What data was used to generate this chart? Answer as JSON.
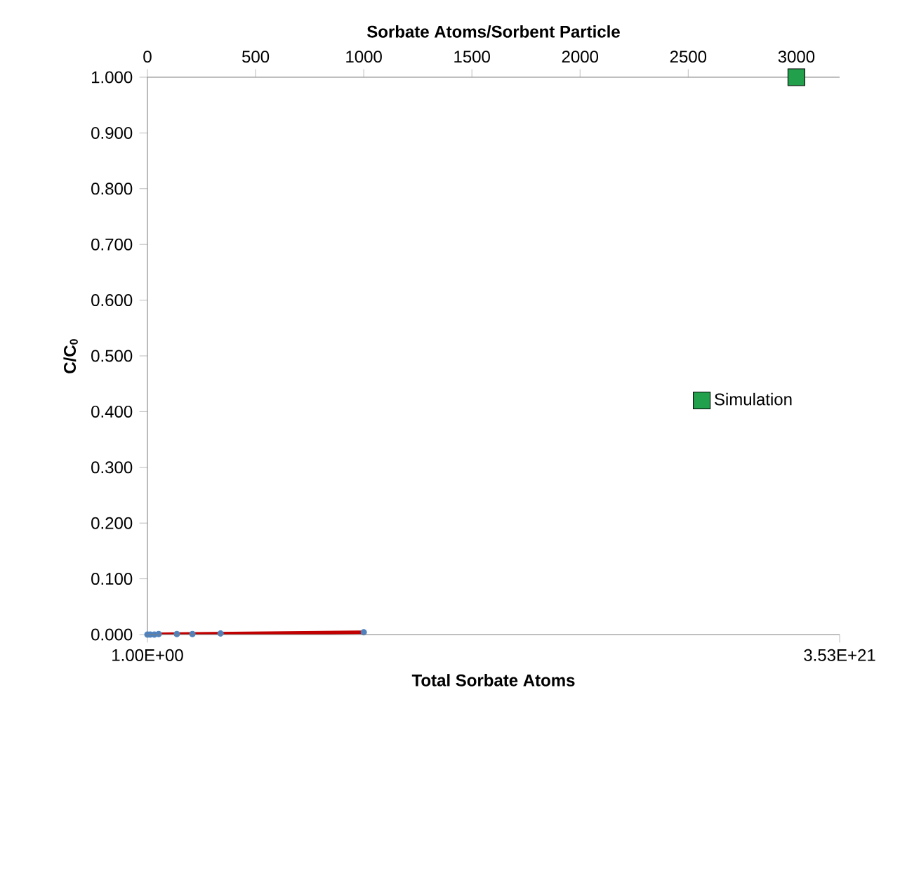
{
  "chart_data": {
    "type": "scatter",
    "xlabel": "Total Sorbate Atoms",
    "x2label": "Sorbate Atoms/Sorbent Particle",
    "ylabel": "C/C$_{0}$",
    "xlim": [
      1,
      3.53e+21
    ],
    "xticks": [
      {
        "value": 1,
        "label": "1.00E+00"
      },
      {
        "value": 3.53e+21,
        "label": "3.53E+21"
      }
    ],
    "x2lim": [
      0,
      3200
    ],
    "x2ticks": [
      0,
      500,
      1000,
      1500,
      2000,
      2500,
      3000
    ],
    "ylim": [
      0,
      1
    ],
    "yticks": [
      {
        "value": 0,
        "label": "0.000"
      },
      {
        "value": 0.1,
        "label": "0.100"
      },
      {
        "value": 0.2,
        "label": "0.200"
      },
      {
        "value": 0.3,
        "label": "0.300"
      },
      {
        "value": 0.4,
        "label": "0.400"
      },
      {
        "value": 0.5,
        "label": "0.500"
      },
      {
        "value": 0.6,
        "label": "0.600"
      },
      {
        "value": 0.7,
        "label": "0.700"
      },
      {
        "value": 0.8,
        "label": "0.800"
      },
      {
        "value": 0.9,
        "label": "0.900"
      },
      {
        "value": 1,
        "label": "1.000"
      }
    ],
    "grid": false,
    "legend": "right",
    "series": [
      {
        "type": "scatter",
        "axis": "x2",
        "marker": "circle",
        "color": "#4f81bd",
        "x": [
          0,
          13,
          32,
          52,
          136,
          208,
          338,
          1000
        ],
        "values": [
          0,
          0,
          0,
          0.001,
          0.001,
          0.001,
          0.002,
          0.004
        ]
      },
      {
        "type": "line",
        "axis": "x2",
        "marker": "none",
        "color": "#c00000",
        "x": [
          0,
          1000
        ],
        "values": [
          0,
          0.004
        ]
      },
      {
        "type": "scatter",
        "axis": "x2",
        "marker": "square",
        "name": "Simulation",
        "color": "#22a04b",
        "x": [
          3000
        ],
        "values": [
          1
        ]
      }
    ]
  }
}
